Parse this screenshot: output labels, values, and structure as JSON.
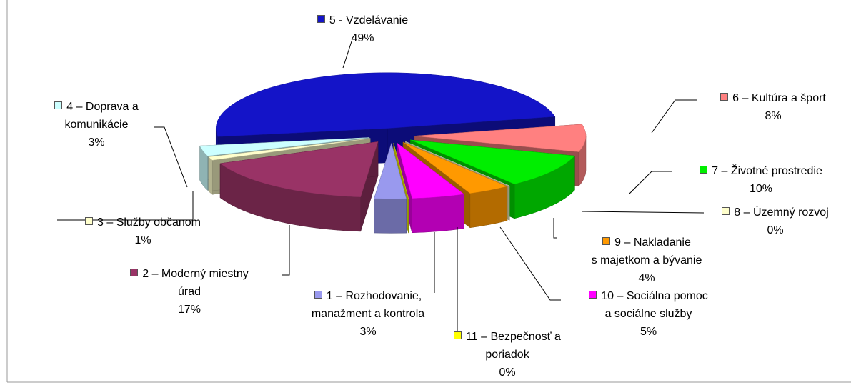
{
  "chart_data": {
    "type": "pie3d",
    "categories": [
      "1 – Rozhodovanie,\nmanažment a kontrola",
      "2 – Moderný miestny\núrad",
      "3 – Služby občanom",
      "4 – Doprava a\nkomunikácie",
      "5 - Vzdelávanie",
      "6 – Kultúra a šport",
      "7 – Životné prostredie",
      "8 – Územný rozvoj",
      "9 – Nakladanie\ns majetkom a bývanie",
      "10 – Sociálna pomoc\na sociálne služby",
      "11 – Bezpečnosť a\nporiadok"
    ],
    "values": [
      3,
      17,
      1,
      3,
      49,
      8,
      10,
      0,
      4,
      5,
      0
    ],
    "value_labels": [
      "3%",
      "17%",
      "1%",
      "3%",
      "49%",
      "8%",
      "10%",
      "0%",
      "4%",
      "5%",
      "0%"
    ],
    "colors": [
      "#9999ee",
      "#993366",
      "#ffffcc",
      "#ccffff",
      "#1414c8",
      "#ff8080",
      "#00ee00",
      "#ffffcc",
      "#ff9900",
      "#ff00ff",
      "#ffff00"
    ]
  }
}
